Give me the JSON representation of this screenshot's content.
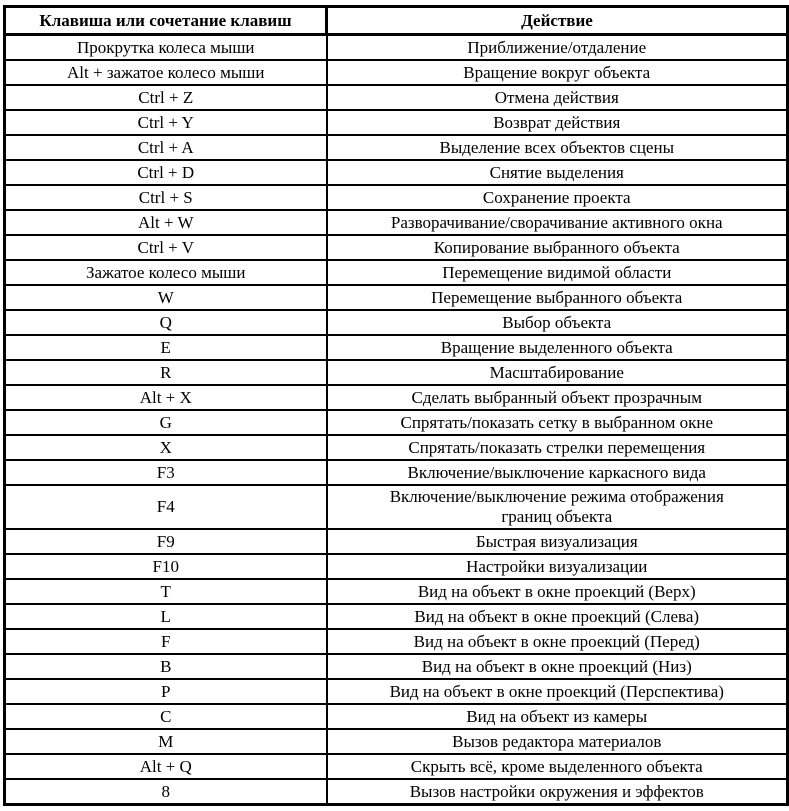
{
  "table": {
    "headers": {
      "key": "Клавиша или сочетание клавиш",
      "action": "Действие"
    },
    "rows": [
      {
        "key": "Прокрутка колеса мыши",
        "action": "Приближение/отдаление"
      },
      {
        "key": "Alt + зажатое колесо мыши",
        "action": "Вращение вокруг объекта"
      },
      {
        "key": "Ctrl + Z",
        "action": "Отмена действия"
      },
      {
        "key": "Ctrl + Y",
        "action": "Возврат действия"
      },
      {
        "key": "Ctrl + A",
        "action": "Выделение всех объектов сцены"
      },
      {
        "key": "Ctrl + D",
        "action": "Снятие выделения"
      },
      {
        "key": "Ctrl + S",
        "action": "Сохранение проекта"
      },
      {
        "key": "Alt + W",
        "action": "Разворачивание/сворачивание активного окна"
      },
      {
        "key": "Ctrl + V",
        "action": "Копирование выбранного объекта"
      },
      {
        "key": "Зажатое колесо мыши",
        "action": "Перемещение видимой области"
      },
      {
        "key": "W",
        "action": "Перемещение выбранного объекта"
      },
      {
        "key": "Q",
        "action": "Выбор объекта"
      },
      {
        "key": "E",
        "action": "Вращение выделенного объекта"
      },
      {
        "key": "R",
        "action": "Масштабирование"
      },
      {
        "key": "Alt + X",
        "action": "Сделать выбранный объект прозрачным"
      },
      {
        "key": "G",
        "action": "Спрятать/показать сетку в выбранном окне"
      },
      {
        "key": "X",
        "action": "Спрятать/показать стрелки перемещения"
      },
      {
        "key": "F3",
        "action": "Включение/выключение каркасного вида"
      },
      {
        "key": "F4",
        "action": "Включение/выключение режима отображения\nграниц объекта"
      },
      {
        "key": "F9",
        "action": "Быстрая визуализация"
      },
      {
        "key": "F10",
        "action": "Настройки визуализации"
      },
      {
        "key": "T",
        "action": "Вид на объект в окне проекций (Верх)"
      },
      {
        "key": "L",
        "action": "Вид на объект в окне проекций (Слева)"
      },
      {
        "key": "F",
        "action": "Вид на объект в окне проекций (Перед)"
      },
      {
        "key": "B",
        "action": "Вид на объект в окне проекций (Низ)"
      },
      {
        "key": "P",
        "action": "Вид на объект в окне проекций (Перспектива)"
      },
      {
        "key": "C",
        "action": "Вид на объект из камеры"
      },
      {
        "key": "M",
        "action": "Вызов редактора материалов"
      },
      {
        "key": "Alt + Q",
        "action": "Скрыть всё, кроме выделенного объекта"
      },
      {
        "key": "8",
        "action": "Вызов настройки окружения и эффектов"
      }
    ]
  }
}
